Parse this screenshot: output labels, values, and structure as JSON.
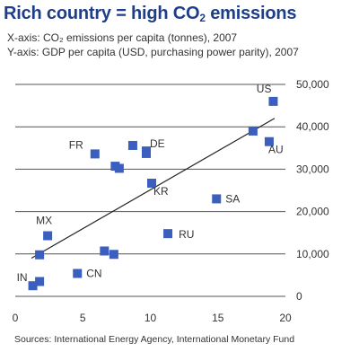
{
  "title_parts": {
    "before": "Rich country = high CO",
    "sub": "2",
    "after": " emissions"
  },
  "subtitle_lines": [
    "X-axis: CO₂ emissions per capita (tonnes), 2007",
    "Y-axis: GDP per capita (USD, purchasing power parity), 2007"
  ],
  "source": "Sources: International Energy Agency, International Monetary Fund",
  "chart_data": {
    "type": "scatter",
    "xlim": [
      0,
      20
    ],
    "ylim": [
      0,
      50000
    ],
    "x_ticks": [
      0,
      5,
      10,
      15,
      20
    ],
    "y_ticks": [
      0,
      10000,
      20000,
      30000,
      40000,
      50000
    ],
    "x_tick_labels": [
      "0",
      "5",
      "10",
      "15",
      "20"
    ],
    "y_tick_labels": [
      "0",
      "10,000",
      "20,000",
      "30,000",
      "40,000",
      "50,000"
    ],
    "grid": "horizontal",
    "marker_color": "#3a5fbf",
    "points": [
      {
        "x": 19.1,
        "y": 46000,
        "label": "US"
      },
      {
        "x": 18.8,
        "y": 36500,
        "label": "AU"
      },
      {
        "x": 17.6,
        "y": 39000,
        "label": ""
      },
      {
        "x": 5.9,
        "y": 33600,
        "label": "FR"
      },
      {
        "x": 8.7,
        "y": 35600,
        "label": ""
      },
      {
        "x": 9.7,
        "y": 33700,
        "label": "DE"
      },
      {
        "x": 9.7,
        "y": 34300,
        "label": ""
      },
      {
        "x": 7.4,
        "y": 30700,
        "label": ""
      },
      {
        "x": 7.7,
        "y": 30200,
        "label": ""
      },
      {
        "x": 10.1,
        "y": 26700,
        "label": "KR"
      },
      {
        "x": 14.9,
        "y": 23000,
        "label": "SA"
      },
      {
        "x": 11.3,
        "y": 14800,
        "label": "RU"
      },
      {
        "x": 2.4,
        "y": 14300,
        "label": "MX"
      },
      {
        "x": 1.8,
        "y": 9800,
        "label": ""
      },
      {
        "x": 6.6,
        "y": 10700,
        "label": ""
      },
      {
        "x": 7.3,
        "y": 9900,
        "label": ""
      },
      {
        "x": 4.6,
        "y": 5400,
        "label": "CN"
      },
      {
        "x": 1.8,
        "y": 3500,
        "label": ""
      },
      {
        "x": 1.3,
        "y": 2500,
        "label": "IN"
      }
    ],
    "trendline": {
      "x1": 1.2,
      "y1": 9000,
      "x2": 19.2,
      "y2": 42000
    }
  }
}
